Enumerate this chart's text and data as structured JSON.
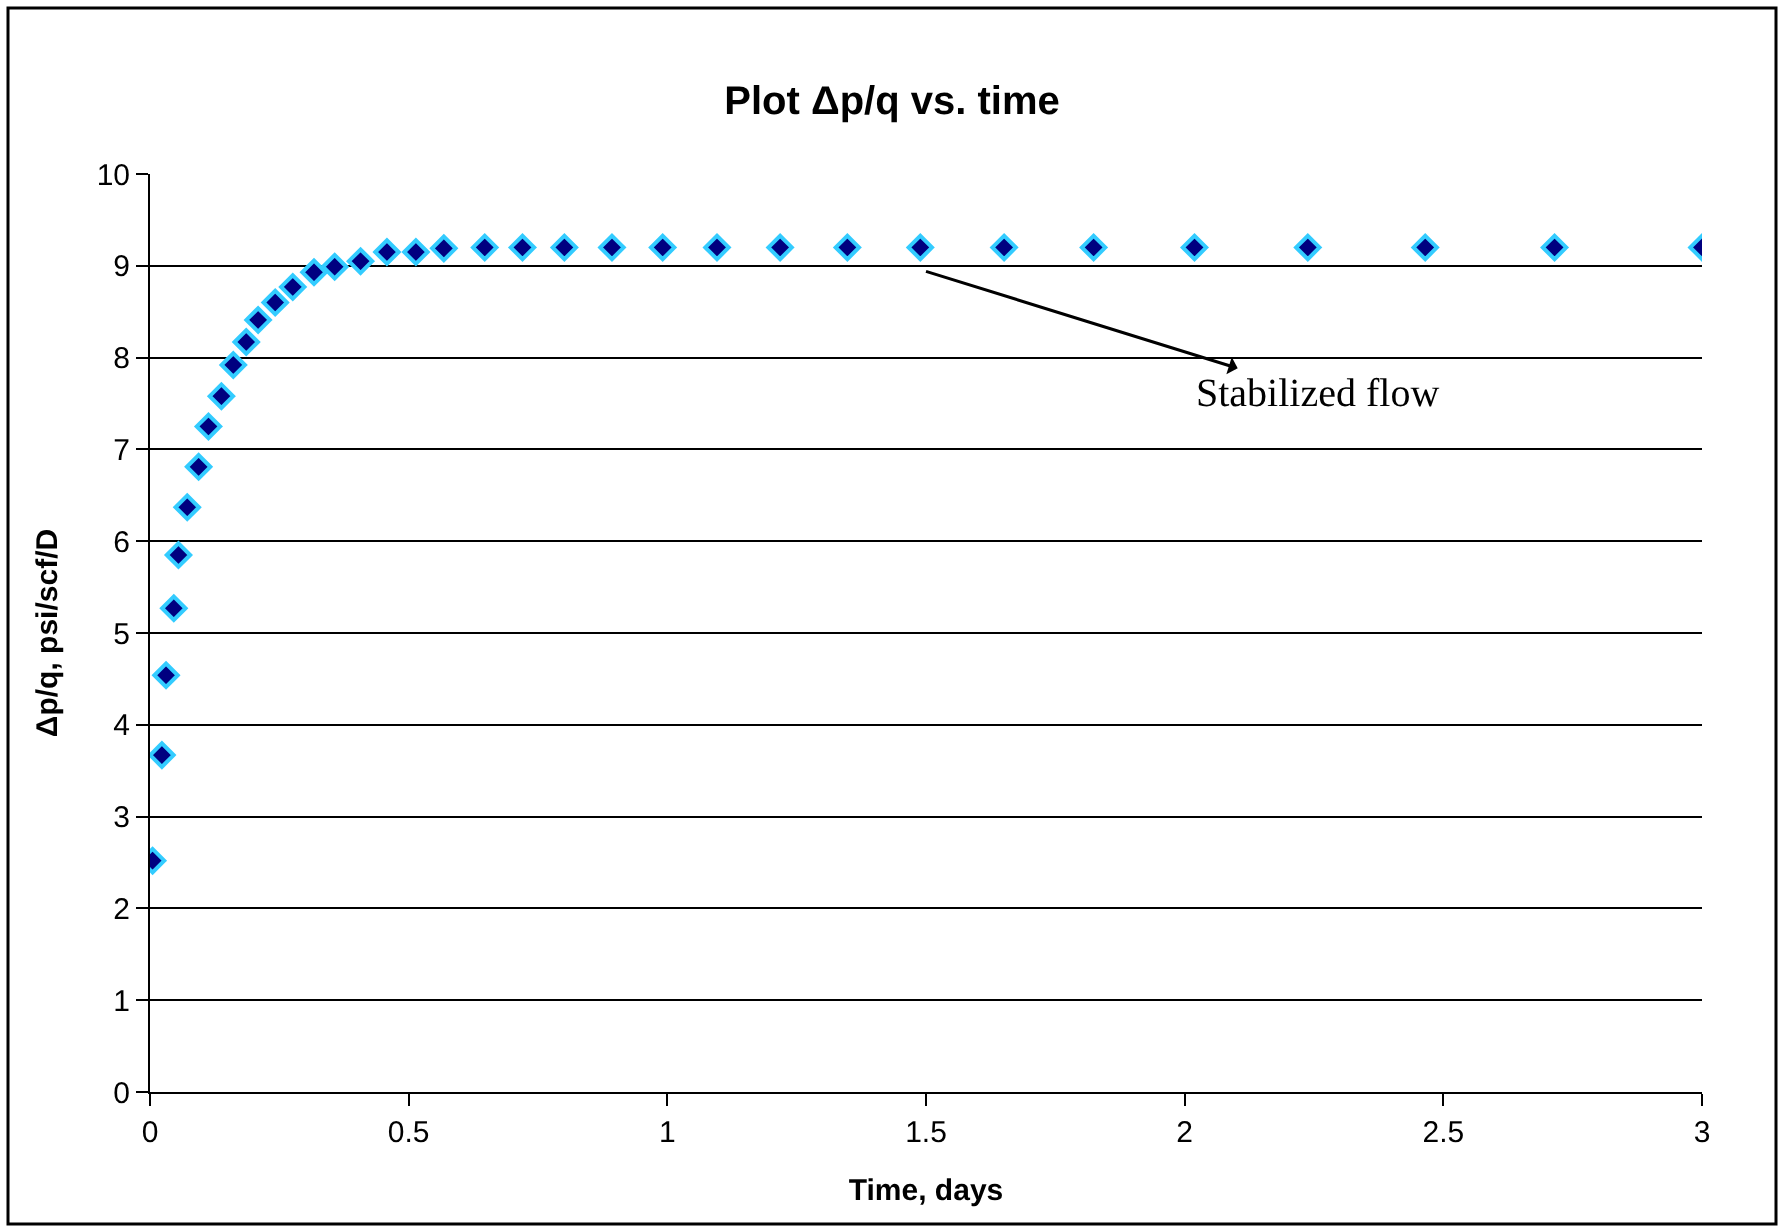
{
  "chart_data": {
    "type": "scatter",
    "title": "Plot Δp/q vs. time",
    "xlabel": "Time, days",
    "ylabel": "Δp/q, psi/scf/D",
    "x": [
      0.005,
      0.023,
      0.031,
      0.046,
      0.055,
      0.072,
      0.094,
      0.113,
      0.138,
      0.161,
      0.186,
      0.209,
      0.242,
      0.276,
      0.317,
      0.357,
      0.407,
      0.458,
      0.514,
      0.568,
      0.647,
      0.72,
      0.801,
      0.893,
      0.991,
      1.096,
      1.218,
      1.348,
      1.489,
      1.651,
      1.824,
      2.019,
      2.238,
      2.465,
      2.715,
      3.0
    ],
    "series": [
      {
        "color": "#000080",
        "values": [
          2.52,
          3.67,
          4.54,
          5.27,
          5.85,
          6.37,
          6.81,
          7.25,
          7.58,
          7.92,
          8.17,
          8.41,
          8.6,
          8.77,
          8.93,
          8.99,
          9.05,
          9.15,
          9.15,
          9.19,
          9.2,
          9.2,
          9.2,
          9.2,
          9.2,
          9.2,
          9.2,
          9.2,
          9.2,
          9.2,
          9.2,
          9.2,
          9.2,
          9.2,
          9.2,
          9.2
        ]
      }
    ],
    "xlim": [
      0,
      3
    ],
    "xticks": [
      0,
      0.5,
      1,
      1.5,
      2,
      2.5,
      3
    ],
    "ylim": [
      0,
      10
    ],
    "yticks": [
      0,
      1,
      2,
      3,
      4,
      5,
      6,
      7,
      8,
      9,
      10
    ],
    "grid": "y",
    "marker": "diamond",
    "annotations": [
      "Stabilized flow"
    ]
  }
}
